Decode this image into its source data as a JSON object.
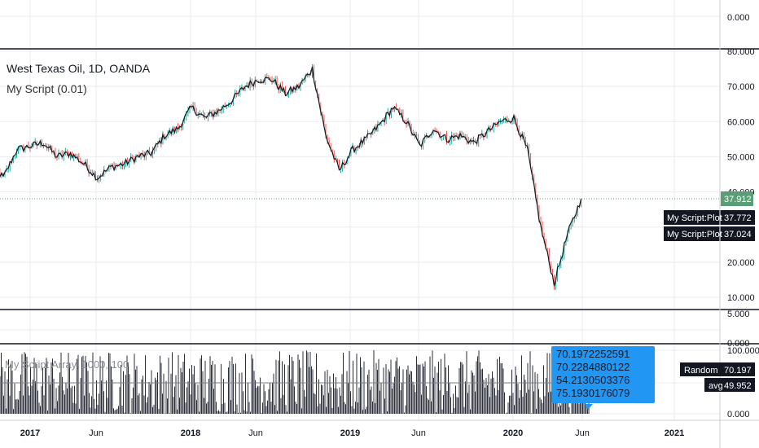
{
  "chart": {
    "title": "West Texas Oil, 1D, OANDA",
    "indicator_label": "My Script (0.01)",
    "lower_indicator_label": "My Script Array, 1000, 100",
    "colors": {
      "candle_up": "#26a69a",
      "candle_down": "#ef5350",
      "line": "#131722",
      "grid": "#e9ebee",
      "pane_border": "#131722",
      "last_price_bg": "#5b9d76",
      "label_bg": "#131722",
      "tooltip_bg": "#2196f3",
      "dotted_line": "#5b9d76"
    },
    "last_price_label": "37.912",
    "plot_labels": [
      {
        "name": "My Script:Plot",
        "value": "37.772"
      },
      {
        "name": "My Script:Plot",
        "value": "37.024"
      }
    ],
    "lower_labels": [
      {
        "name": "Random",
        "value": "70.197"
      },
      {
        "name": "avg",
        "value": "49.952"
      }
    ],
    "tooltip_lines": [
      "70.1972252591",
      "70.2284880122",
      "54.2130503376",
      "75.1930176079"
    ],
    "top_pane_ticks": [
      "0.000"
    ],
    "main_axis_ticks": [
      "80.000",
      "70.000",
      "60.000",
      "50.000",
      "40.000",
      "20.000",
      "10.000"
    ],
    "mid_pane_ticks": [
      "5.000",
      "0.000"
    ],
    "lower_axis_ticks": [
      "100.000",
      "0.000"
    ],
    "x_ticks": [
      "2017",
      "Jun",
      "2018",
      "Jun",
      "2019",
      "Jun",
      "2020",
      "Jun",
      "2021"
    ]
  },
  "chart_data": {
    "type": "line",
    "title": "West Texas Oil, 1D, OANDA",
    "xlabel": "",
    "ylabel": "",
    "ylim": [
      5,
      82
    ],
    "series": [
      {
        "name": "West Texas Oil",
        "x": [
          "2016-10",
          "2016-11",
          "2016-12",
          "2017-01",
          "2017-02",
          "2017-03",
          "2017-04",
          "2017-05",
          "2017-06",
          "2017-07",
          "2017-08",
          "2017-09",
          "2017-10",
          "2017-11",
          "2017-12",
          "2018-01",
          "2018-02",
          "2018-03",
          "2018-04",
          "2018-05",
          "2018-06",
          "2018-07",
          "2018-08",
          "2018-09",
          "2018-10",
          "2018-11",
          "2018-12",
          "2019-01",
          "2019-02",
          "2019-03",
          "2019-04",
          "2019-05",
          "2019-06",
          "2019-07",
          "2019-08",
          "2019-09",
          "2019-10",
          "2019-11",
          "2019-12",
          "2020-01",
          "2020-02",
          "2020-03",
          "2020-04",
          "2020-05",
          "2020-06"
        ],
        "values": [
          48,
          44,
          52,
          53,
          54,
          50,
          51,
          48,
          44,
          47,
          48,
          50,
          51,
          56,
          58,
          64,
          61,
          63,
          66,
          70,
          72,
          72,
          68,
          70,
          75,
          56,
          46,
          52,
          55,
          59,
          64,
          60,
          53,
          58,
          55,
          56,
          54,
          57,
          60,
          61,
          52,
          30,
          14,
          28,
          38
        ]
      },
      {
        "name": "Random",
        "values": [
          70.197
        ]
      },
      {
        "name": "avg",
        "values": [
          49.952
        ]
      }
    ],
    "grid": true,
    "legend": "top-left"
  }
}
